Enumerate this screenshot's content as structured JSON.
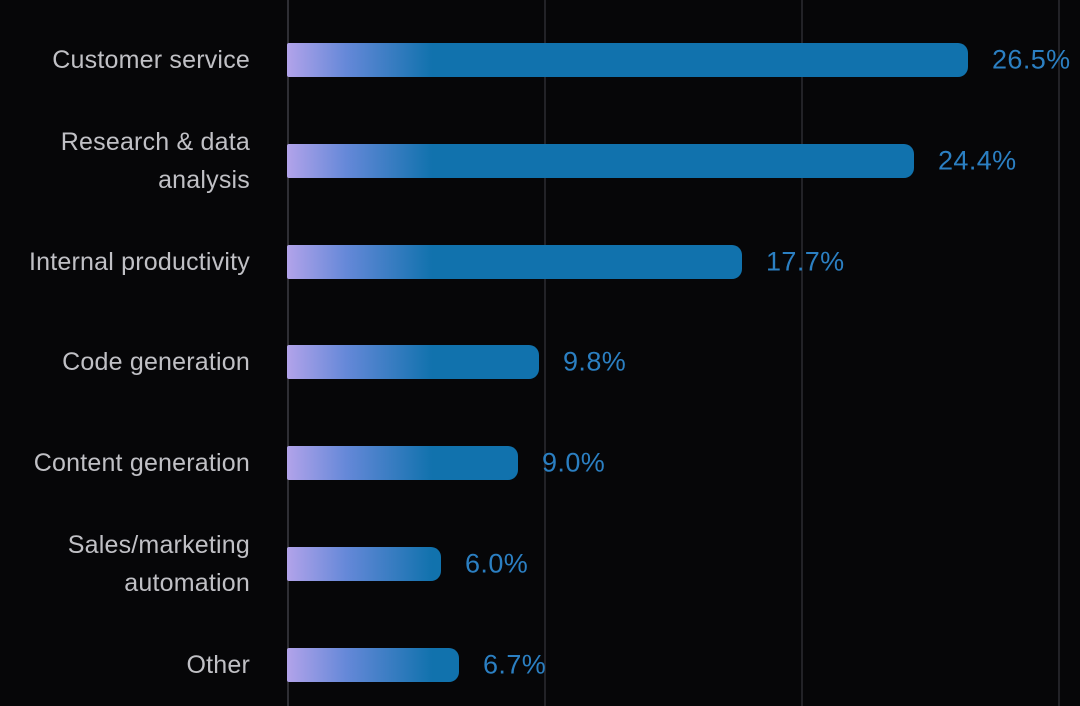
{
  "chart_data": {
    "type": "bar",
    "orientation": "horizontal",
    "title": "",
    "xlabel": "",
    "ylabel": "",
    "categories": [
      "Customer service",
      "Research & data analysis",
      "Internal productivity",
      "Code generation",
      "Content generation",
      "Sales/marketing automation",
      "Other"
    ],
    "category_display": [
      "Customer service",
      "Research & data\nanalysis",
      "Internal productivity",
      "Code generation",
      "Content generation",
      "Sales/marketing\nautomation",
      "Other"
    ],
    "values": [
      26.5,
      24.4,
      17.7,
      9.8,
      9.0,
      6.0,
      6.7
    ],
    "value_labels": [
      "26.5%",
      "24.4%",
      "17.7%",
      "9.8%",
      "9.0%",
      "6.0%",
      "6.7%"
    ],
    "xlim": [
      0,
      30.8
    ],
    "x_gridlines": [
      0,
      10,
      20,
      30
    ],
    "tick_labels_visible": false,
    "grid": "vertical-only",
    "legend": "none"
  },
  "style": {
    "background": "#060608",
    "bar_gradient_start": "#b2a3ea",
    "bar_gradient_mid": "#6488d8",
    "bar_color": "#1172ad",
    "value_label_color": "#2b7fc2",
    "category_label_color": "#c0c0c5",
    "axis_line_color": "#2e2e34",
    "gridline_color": "#222227"
  }
}
